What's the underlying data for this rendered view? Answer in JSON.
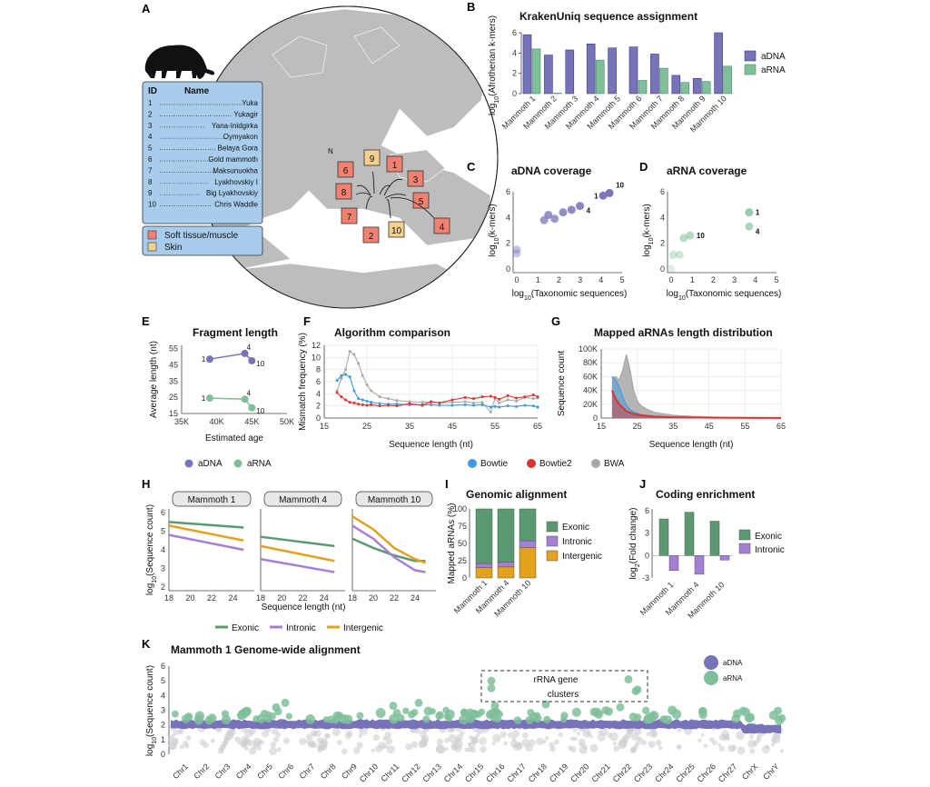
{
  "colors": {
    "adna": "#7773b8",
    "arna": "#7fbf9a",
    "bowtie": "#3e9be0",
    "bowtie2": "#d93434",
    "bwa": "#a8a8a8",
    "exonic": "#5a9a70",
    "intronic": "#a57fd6",
    "intergenic": "#e3a21c",
    "soft": "#f08070",
    "skin": "#f5cf8e",
    "map_box": "#a8ccec"
  },
  "icons": {
    "mammoth": "mammoth-silhouette-icon"
  },
  "panelA": {
    "letter": "A",
    "table_header": {
      "id": "ID",
      "name": "Name"
    },
    "rows": [
      {
        "id": "1",
        "name": "Yuka"
      },
      {
        "id": "2",
        "name": "Yukagir"
      },
      {
        "id": "3",
        "name": "Yana-Inidgirka"
      },
      {
        "id": "4",
        "name": "Oymyakon"
      },
      {
        "id": "5",
        "name": "Belaya Gora"
      },
      {
        "id": "6",
        "name": "Gold mammoth"
      },
      {
        "id": "7",
        "name": "Maksunuokha"
      },
      {
        "id": "8",
        "name": "Lyakhovskiy I"
      },
      {
        "id": "9",
        "name": "Big Lyakhovskiy"
      },
      {
        "id": "10",
        "name": "Chris Waddle"
      }
    ],
    "legend": [
      "Soft tissue/muscle",
      "Skin"
    ],
    "north": "N",
    "map_labels": [
      "6",
      "9",
      "1",
      "8",
      "3",
      "5",
      "7",
      "2",
      "10",
      "4"
    ]
  },
  "panelB": {
    "letter": "B",
    "chart_data": {
      "type": "bar",
      "title": "KrakenUniq sequence assignment",
      "ylabel": "log10(Afrotherian k-mers)",
      "ylim": [
        0,
        6
      ],
      "yticks": [
        "0",
        "2",
        "4",
        "6"
      ],
      "categories": [
        "Mammoth 1",
        "Mammoth 2",
        "Mammoth 3",
        "Mammoth 4",
        "Mammoth 5",
        "Mammoth 6",
        "Mammoth 7",
        "Mammoth 8",
        "Mammoth 9",
        "Mammoth 10"
      ],
      "series": [
        {
          "name": "aDNA",
          "values": [
            5.8,
            3.8,
            4.3,
            4.9,
            4.5,
            4.6,
            3.9,
            1.8,
            1.5,
            6.0
          ]
        },
        {
          "name": "aRNA",
          "values": [
            4.4,
            0.05,
            0,
            3.3,
            0,
            1.3,
            2.5,
            1.1,
            1.2,
            2.7
          ]
        }
      ]
    }
  },
  "panelC": {
    "letter": "C",
    "chart_data": {
      "type": "scatter",
      "title": "aDNA coverage",
      "xlabel": "log10(Taxonomic sequences)",
      "ylabel": "log10(k-mers)",
      "xlim": [
        0,
        5
      ],
      "ylim": [
        0,
        6
      ],
      "xticks": [
        "0",
        "1",
        "2",
        "3",
        "4",
        "5"
      ],
      "yticks": [
        "0",
        "2",
        "4",
        "6"
      ],
      "points": [
        {
          "x": 0,
          "y": 1.5
        },
        {
          "x": 0,
          "y": 1.2
        },
        {
          "x": 1.3,
          "y": 3.8
        },
        {
          "x": 1.5,
          "y": 4.2
        },
        {
          "x": 1.8,
          "y": 3.9
        },
        {
          "x": 2.2,
          "y": 4.4
        },
        {
          "x": 2.6,
          "y": 4.6
        },
        {
          "x": 3.0,
          "y": 4.9,
          "label": "4"
        },
        {
          "x": 4.1,
          "y": 5.7,
          "label": "1"
        },
        {
          "x": 4.4,
          "y": 5.9,
          "label": "10"
        }
      ]
    }
  },
  "panelD": {
    "letter": "D",
    "chart_data": {
      "type": "scatter",
      "title": "aRNA coverage",
      "xlabel": "log10(Taxonomic sequences)",
      "ylabel": "log10(k-mers)",
      "xlim": [
        0,
        5
      ],
      "ylim": [
        0,
        6
      ],
      "xticks": [
        "0",
        "1",
        "2",
        "3",
        "4",
        "5"
      ],
      "yticks": [
        "0",
        "2",
        "4",
        "6"
      ],
      "points": [
        {
          "x": 0,
          "y": 0
        },
        {
          "x": 0.1,
          "y": 1.1
        },
        {
          "x": 0.4,
          "y": 1.1
        },
        {
          "x": 0.6,
          "y": 2.4
        },
        {
          "x": 0.9,
          "y": 2.6,
          "label": "10"
        },
        {
          "x": 3.7,
          "y": 4.4,
          "label": "1"
        },
        {
          "x": 3.7,
          "y": 3.3,
          "label": "4"
        }
      ]
    }
  },
  "panelE": {
    "letter": "E",
    "chart_data": {
      "type": "line",
      "title": "Fragment length",
      "xlabel": "Estimated age",
      "ylabel": "Average length (nt)",
      "xticks": [
        "35K",
        "40K",
        "45K",
        "50K"
      ],
      "yticks": [
        "15",
        "25",
        "35",
        "45",
        "55"
      ],
      "xlim": [
        35000,
        50000
      ],
      "ylim": [
        15,
        57
      ],
      "series": [
        {
          "name": "aDNA",
          "points": [
            {
              "x": 39000,
              "y": 48.5,
              "label": "1"
            },
            {
              "x": 44000,
              "y": 52,
              "label": "4"
            },
            {
              "x": 45000,
              "y": 47.5,
              "label": "10"
            }
          ]
        },
        {
          "name": "aRNA",
          "points": [
            {
              "x": 39000,
              "y": 24.5,
              "label": "1"
            },
            {
              "x": 44000,
              "y": 23.8,
              "label": "4"
            },
            {
              "x": 45000,
              "y": 18.5,
              "label": "10"
            }
          ]
        }
      ],
      "legend": [
        "aDNA",
        "aRNA"
      ]
    }
  },
  "panelF": {
    "letter": "F",
    "chart_data": {
      "type": "line",
      "title": "Algorithm comparison",
      "xlabel": "Sequence length (nt)",
      "ylabel": "Mismatch frequency (%)",
      "xticks": [
        "15",
        "25",
        "35",
        "45",
        "55",
        "65"
      ],
      "yticks": [
        "0",
        "2",
        "4",
        "6",
        "8",
        "10",
        "12"
      ],
      "xlim": [
        15,
        65
      ],
      "ylim": [
        0,
        12
      ],
      "x": [
        18,
        19,
        20,
        21,
        22,
        23,
        24,
        25,
        26,
        28,
        30,
        32,
        35,
        38,
        40,
        42,
        45,
        48,
        50,
        52,
        54,
        55,
        56,
        58,
        60,
        62,
        64,
        65
      ],
      "series": [
        {
          "name": "Bowtie",
          "values": [
            6.2,
            7.0,
            7.2,
            6.8,
            4.5,
            3.2,
            3.0,
            2.8,
            2.6,
            2.4,
            2.3,
            2.3,
            2.2,
            2.2,
            2.2,
            2.1,
            2.1,
            2.2,
            2.1,
            2.2,
            1.8,
            1.9,
            1.8,
            2.0,
            1.9,
            2.1,
            2.0,
            1.8
          ]
        },
        {
          "name": "Bowtie2",
          "values": [
            4.2,
            3.5,
            3.0,
            2.6,
            2.5,
            2.3,
            2.2,
            2.1,
            2.2,
            2.0,
            2.1,
            2.0,
            2.4,
            2.1,
            2.7,
            2.5,
            3.0,
            3.4,
            3.2,
            3.5,
            3.6,
            3.4,
            3.1,
            3.7,
            3.3,
            3.5,
            3.8,
            3.5
          ]
        },
        {
          "name": "BWA",
          "values": [
            4.5,
            6.5,
            8.0,
            11.0,
            10.5,
            9.0,
            7.0,
            5.5,
            4.5,
            3.5,
            3.2,
            2.9,
            2.7,
            2.6,
            2.6,
            2.5,
            2.6,
            2.7,
            2.5,
            2.6,
            1.0,
            3.2,
            2.5,
            3.0,
            2.8,
            3.4,
            3.2,
            3.3
          ]
        }
      ],
      "legend": [
        "Bowtie",
        "Bowtie2",
        "BWA"
      ]
    }
  },
  "panelG": {
    "letter": "G",
    "chart_data": {
      "type": "area",
      "title": "Mapped aRNAs length distribution",
      "xlabel": "Sequence length (nt)",
      "ylabel": "Sequence count",
      "xticks": [
        "15",
        "25",
        "35",
        "45",
        "55",
        "65"
      ],
      "yticks": [
        "0",
        "20K",
        "40K",
        "60K",
        "80K",
        "100K"
      ],
      "xlim": [
        15,
        65
      ],
      "ylim": [
        0,
        100000
      ],
      "x": [
        18,
        19,
        20,
        21,
        22,
        23,
        24,
        25,
        26,
        28,
        30,
        35,
        40,
        45,
        50,
        55,
        60,
        65
      ],
      "series": [
        {
          "name": "BWA",
          "values": [
            58000,
            60000,
            55000,
            70000,
            92000,
            70000,
            40000,
            25000,
            18000,
            12000,
            8000,
            4000,
            2500,
            1500,
            1000,
            800,
            500,
            300
          ]
        },
        {
          "name": "Bowtie",
          "values": [
            60000,
            55000,
            45000,
            30000,
            18000,
            12000,
            9000,
            7000,
            5000,
            3500,
            2500,
            1500,
            1000,
            700,
            500,
            400,
            300,
            200
          ]
        },
        {
          "name": "Bowtie2",
          "values": [
            40000,
            28000,
            20000,
            15000,
            10000,
            8000,
            6000,
            5000,
            4000,
            3000,
            2000,
            1200,
            800,
            500,
            400,
            300,
            200,
            100
          ]
        }
      ]
    }
  },
  "panelH": {
    "letter": "H",
    "chart_data": {
      "type": "line",
      "xlabel": "Sequence length (nt)",
      "ylabel": "log10(Sequence count)",
      "xticks": [
        "18",
        "20",
        "22",
        "24"
      ],
      "yticks": [
        "2",
        "3",
        "4",
        "5",
        "6"
      ],
      "xlim": [
        18,
        26
      ],
      "ylim": [
        1.8,
        6.2
      ],
      "facets": [
        {
          "name": "Mammoth 1",
          "x": [
            18,
            25
          ],
          "Exonic": [
            5.5,
            5.2
          ],
          "Intronic": [
            4.8,
            4.0
          ],
          "Intergenic": [
            5.3,
            4.5
          ]
        },
        {
          "name": "Mammoth 4",
          "x": [
            18,
            25
          ],
          "Exonic": [
            4.7,
            4.2
          ],
          "Intronic": [
            3.5,
            2.8
          ],
          "Intergenic": [
            4.2,
            3.4
          ]
        },
        {
          "name": "Mammoth 10",
          "x": [
            18,
            20,
            22,
            24,
            25
          ],
          "Exonic": [
            4.6,
            4.1,
            3.7,
            3.4,
            3.4
          ],
          "Intronic": [
            5.3,
            4.6,
            3.6,
            2.9,
            2.8
          ],
          "Intergenic": [
            5.8,
            5.1,
            4.1,
            3.5,
            3.3
          ]
        }
      ],
      "legend": [
        "Exonic",
        "Intronic",
        "Intergenic"
      ]
    }
  },
  "panelI": {
    "letter": "I",
    "chart_data": {
      "type": "bar",
      "title": "Genomic alignment",
      "ylabel": "Mapped aRNAs (%)",
      "ylim": [
        0,
        100
      ],
      "yticks": [
        "0",
        "25",
        "50",
        "75",
        "100"
      ],
      "categories": [
        "Mammoth 1",
        "Mammoth 4",
        "Mammoth 10"
      ],
      "series": [
        {
          "name": "Intergenic",
          "values": [
            15,
            16,
            44
          ]
        },
        {
          "name": "Intronic",
          "values": [
            6,
            7,
            10
          ]
        },
        {
          "name": "Exonic",
          "values": [
            79,
            77,
            46
          ]
        }
      ],
      "legend": [
        "Exonic",
        "Intronic",
        "Intergenic"
      ]
    }
  },
  "panelJ": {
    "letter": "J",
    "chart_data": {
      "type": "bar",
      "title": "Coding enrichment",
      "ylabel": "log2(Fold change)",
      "ylim": [
        -3,
        6
      ],
      "yticks": [
        "-3",
        "0",
        "3",
        "6"
      ],
      "categories": [
        "Mammoth 1",
        "Mammoth 4",
        "Mammoth 10"
      ],
      "series": [
        {
          "name": "Exonic",
          "values": [
            4.9,
            5.8,
            4.6
          ]
        },
        {
          "name": "Intronic",
          "values": [
            -2.0,
            -2.5,
            -0.6
          ]
        }
      ],
      "legend": [
        "Exonic",
        "Intronic"
      ]
    }
  },
  "panelK": {
    "letter": "K",
    "chart_data": {
      "type": "scatter",
      "title": "Mammoth 1 Genome-wide alignment",
      "ylabel": "log10(Sequence count)",
      "ylim": [
        0,
        6
      ],
      "yticks": [
        "0",
        "1",
        "2",
        "3",
        "4",
        "5",
        "6"
      ],
      "categories": [
        "Chr1",
        "Chr2",
        "Chr3",
        "Chr4",
        "Chr5",
        "Chr6",
        "Chr7",
        "Chr8",
        "Chr9",
        "Chr10",
        "Chr11",
        "Chr12",
        "Chr13",
        "Chr14",
        "Chr15",
        "Chr16",
        "Chr17",
        "Chr18",
        "Chr19",
        "Chr20",
        "Chr21",
        "Chr22",
        "Chr23",
        "Chr24",
        "Chr25",
        "Chr26",
        "Chr27",
        "ChrX",
        "ChrY"
      ],
      "series": [
        {
          "name": "aDNA"
        },
        {
          "name": "aRNA"
        }
      ],
      "annotation": [
        "rRNA gene",
        "clusters"
      ],
      "legend": [
        "aDNA",
        "aRNA"
      ]
    }
  }
}
